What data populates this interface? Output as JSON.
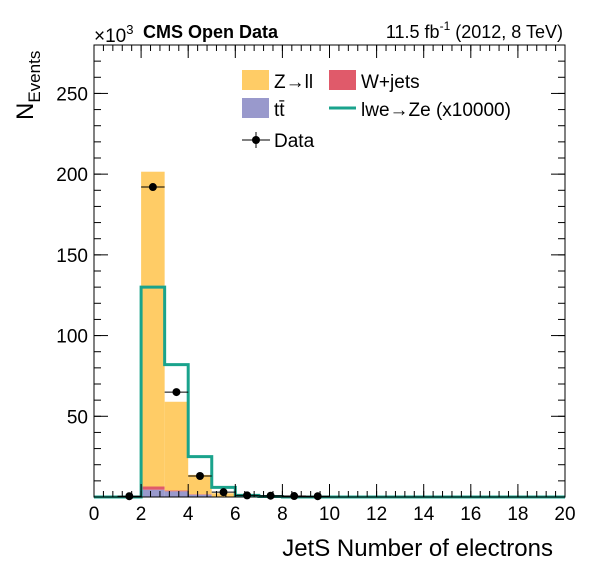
{
  "header": {
    "multiplier": "×10",
    "multiplier_exp": "3",
    "experiment": "CMS Open Data",
    "lumi_prefix": "11.5 fb",
    "lumi_exp": "-1",
    "lumi_suffix": " (2012, 8 TeV)"
  },
  "colors": {
    "zll": "#ffcc66",
    "wjets": "#e05a6a",
    "ttbar": "#9999cc",
    "signal": "#1aa38c",
    "data": "#000000"
  },
  "chart_data": {
    "type": "bar",
    "title": "",
    "xlabel": "JetS Number of electrons",
    "ylabel": "N",
    "ylabel_sub": "Events",
    "xlim": [
      0,
      20
    ],
    "ylim": [
      0,
      280
    ],
    "y_unit_scale": 1000,
    "x_ticks": [
      0,
      2,
      4,
      6,
      8,
      10,
      12,
      14,
      16,
      18,
      20
    ],
    "y_ticks": [
      50,
      100,
      150,
      200,
      250
    ],
    "bin_edges": [
      0,
      1,
      2,
      3,
      4,
      5,
      6,
      7,
      8,
      9,
      10,
      11,
      12,
      13,
      14,
      15,
      16,
      17,
      18,
      19,
      20
    ],
    "stack": [
      {
        "name": "tt̄",
        "color_key": "ttbar",
        "values": [
          0,
          0,
          4.5,
          3.5,
          1.5,
          0.3,
          0,
          0,
          0,
          0,
          0,
          0,
          0,
          0,
          0,
          0,
          0,
          0,
          0,
          0
        ]
      },
      {
        "name": "W+jets",
        "color_key": "wjets",
        "values": [
          0,
          0,
          2,
          0.5,
          0.2,
          0,
          0,
          0,
          0,
          0,
          0,
          0,
          0,
          0,
          0,
          0,
          0,
          0,
          0,
          0
        ]
      },
      {
        "name": "Z→ll",
        "color_key": "zll",
        "values": [
          0,
          0,
          195,
          55,
          12,
          2,
          0.5,
          0,
          0,
          0,
          0,
          0,
          0,
          0,
          0,
          0,
          0,
          0,
          0,
          0
        ]
      }
    ],
    "signal": {
      "name": "lwe→Ze (x10000)",
      "color_key": "signal",
      "values": [
        0,
        0,
        130,
        82,
        25,
        6,
        1,
        0.3,
        0,
        0,
        0,
        0,
        0,
        0,
        0,
        0,
        0,
        0,
        0,
        0
      ]
    },
    "data": {
      "name": "Data",
      "x": [
        1.5,
        2.5,
        3.5,
        4.5,
        5.5,
        6.5,
        7.5,
        8.5,
        9.5
      ],
      "y": [
        0.5,
        192,
        65,
        13,
        3,
        1,
        0.8,
        0.6,
        0.5
      ],
      "yerr": [
        0.3,
        1.5,
        1,
        0.5,
        0.3,
        0.2,
        0.2,
        0.2,
        0.2
      ]
    },
    "legend": {
      "placement": "top-center",
      "entries": [
        {
          "label": "Z→ll",
          "kind": "box",
          "color_key": "zll"
        },
        {
          "label": "W+jets",
          "kind": "box",
          "color_key": "wjets"
        },
        {
          "label": "tt̄",
          "kind": "box",
          "color_key": "ttbar"
        },
        {
          "label": "lwe→Ze (x10000)",
          "kind": "line",
          "color_key": "signal"
        },
        {
          "label": "Data",
          "kind": "marker",
          "color_key": "data"
        }
      ]
    }
  }
}
